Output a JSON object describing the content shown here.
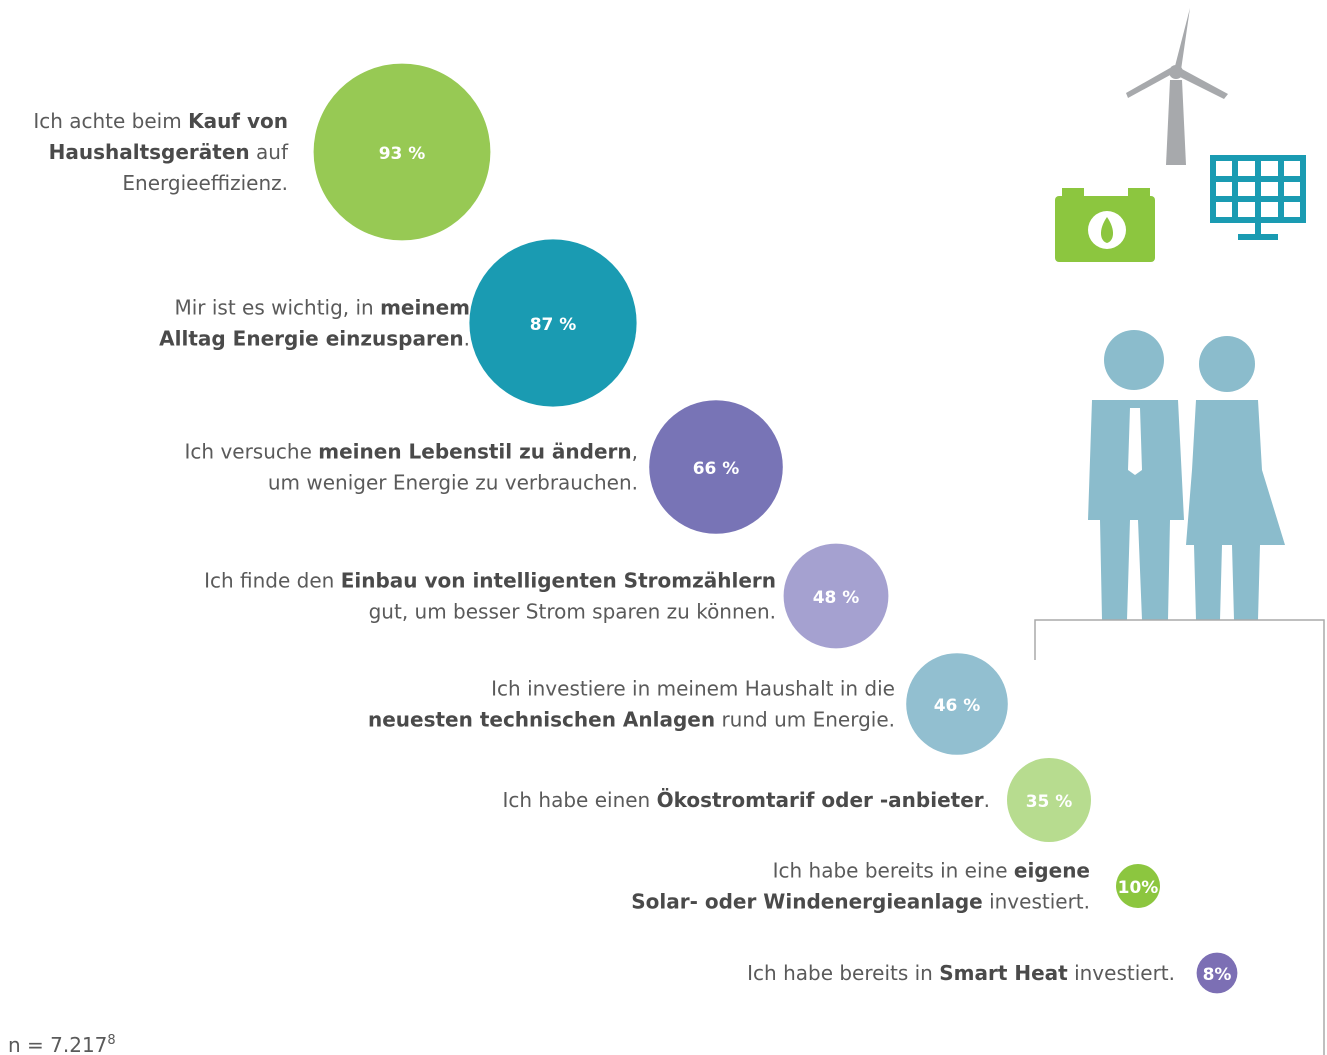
{
  "chart_data": {
    "type": "bubble",
    "categories": [
      [
        [
          {
            "text": "Ich achte beim ",
            "bold": false
          },
          {
            "text": "Kauf von",
            "bold": true
          }
        ],
        [
          {
            "text": "Haushaltsgeräten",
            "bold": true
          },
          {
            "text": " auf",
            "bold": false
          }
        ],
        [
          {
            "text": "Energieeffizienz.",
            "bold": false
          }
        ]
      ],
      [
        [
          {
            "text": "Mir ist es wichtig, in ",
            "bold": false
          },
          {
            "text": "meinem",
            "bold": true
          }
        ],
        [
          {
            "text": "Alltag Energie einzusparen",
            "bold": true
          },
          {
            "text": ".",
            "bold": false
          }
        ]
      ],
      [
        [
          {
            "text": "Ich versuche ",
            "bold": false
          },
          {
            "text": "meinen Lebenstil zu ändern",
            "bold": true
          },
          {
            "text": ",",
            "bold": false
          }
        ],
        [
          {
            "text": "um weniger Energie zu verbrauchen.",
            "bold": false
          }
        ]
      ],
      [
        [
          {
            "text": "Ich finde den ",
            "bold": false
          },
          {
            "text": "Einbau von intelligenten Stromzählern",
            "bold": true
          }
        ],
        [
          {
            "text": "gut, um besser Strom sparen zu können.",
            "bold": false
          }
        ]
      ],
      [
        [
          {
            "text": "Ich investiere in meinem Haushalt in die",
            "bold": false
          }
        ],
        [
          {
            "text": "neuesten technischen Anlagen",
            "bold": true
          },
          {
            "text": " rund um Energie.",
            "bold": false
          }
        ]
      ],
      [
        [
          {
            "text": "Ich habe einen ",
            "bold": false
          },
          {
            "text": "Ökostromtarif oder -anbieter",
            "bold": true
          },
          {
            "text": ".",
            "bold": false
          }
        ]
      ],
      [
        [
          {
            "text": "Ich habe bereits in eine ",
            "bold": false
          },
          {
            "text": "eigene",
            "bold": true
          }
        ],
        [
          {
            "text": "Solar- oder Windenergieanlage",
            "bold": true
          },
          {
            "text": " investiert.",
            "bold": false
          }
        ]
      ],
      [
        [
          {
            "text": "Ich habe bereits in ",
            "bold": false
          },
          {
            "text": "Smart Heat",
            "bold": true
          },
          {
            "text": " investiert.",
            "bold": false
          }
        ]
      ]
    ],
    "values": [
      93,
      87,
      66,
      48,
      46,
      35,
      10,
      8
    ],
    "value_labels": [
      "93 %",
      "87 %",
      "66 %",
      "48 %",
      "46 %",
      "35 %",
      "10%",
      "8%"
    ],
    "colors": [
      "#97c954",
      "#1a9bb2",
      "#7874b6",
      "#a5a1d0",
      "#92bfd0",
      "#b7dc8f",
      "#8cc63f",
      "#7c6fb4"
    ],
    "footnote": "n = 7.217",
    "footnote_ref": "8"
  }
}
